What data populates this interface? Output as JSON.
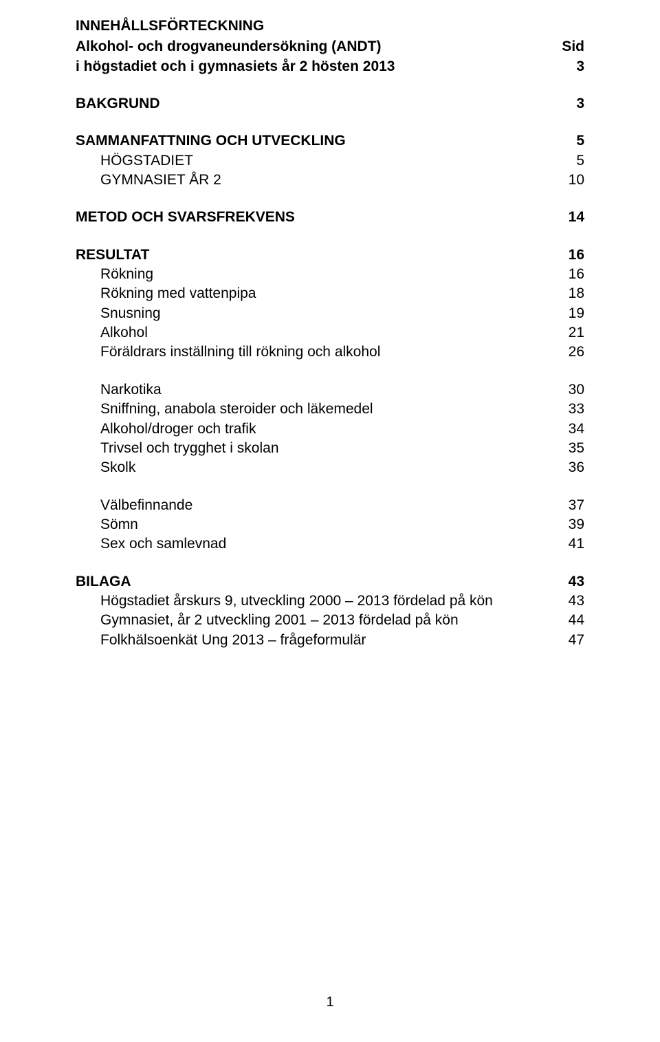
{
  "colors": {
    "text": "#000000",
    "background": "#ffffff"
  },
  "typography": {
    "font_family": "Arial",
    "title_fontsize_pt": 16,
    "body_fontsize_pt": 16,
    "line_height": 1.35
  },
  "title": "INNEHÅLLSFÖRTECKNING",
  "page_label": "Sid",
  "subtitle": {
    "line1": "Alkohol- och drogvaneundersökning (ANDT)",
    "line2": "i högstadiet och i gymnasiets år 2 hösten 2013",
    "page": "3"
  },
  "sections": [
    {
      "label": "BAKGRUND",
      "page": "3",
      "bold": true,
      "subs": []
    },
    {
      "label": "SAMMANFATTNING OCH UTVECKLING",
      "page": "5",
      "bold": true,
      "subs": [
        {
          "label": "HÖGSTADIET",
          "page": "5",
          "indent": true
        },
        {
          "label": "GYMNASIET ÅR 2",
          "page": "10",
          "indent": true
        }
      ]
    },
    {
      "label": "METOD OCH SVARSFREKVENS",
      "page": "14",
      "bold": true,
      "subs": []
    },
    {
      "label": "RESULTAT",
      "page": "16",
      "bold": true,
      "subs": [
        {
          "label": "Rökning",
          "page": "16",
          "indent": true
        },
        {
          "label": "Rökning med vattenpipa",
          "page": "18",
          "indent": true
        },
        {
          "label": "Snusning",
          "page": "19",
          "indent": true
        },
        {
          "label": "Alkohol",
          "page": "21",
          "indent": true
        },
        {
          "label": "Föräldrars inställning till rökning och alkohol",
          "page": "26",
          "indent": true
        }
      ]
    }
  ],
  "groups": [
    [
      {
        "label": "Narkotika",
        "page": "30"
      },
      {
        "label": "Sniffning, anabola steroider och läkemedel",
        "page": "33"
      },
      {
        "label": "Alkohol/droger och trafik",
        "page": "34"
      },
      {
        "label": "Trivsel och trygghet i skolan",
        "page": "35"
      },
      {
        "label": "Skolk",
        "page": "36"
      }
    ],
    [
      {
        "label": "Välbefinnande",
        "page": "37"
      },
      {
        "label": "Sömn",
        "page": "39"
      },
      {
        "label": "Sex och samlevnad",
        "page": "41"
      }
    ]
  ],
  "bilaga": {
    "label": "BILAGA",
    "page": "43",
    "subs": [
      {
        "label": "Högstadiet årskurs 9, utveckling 2000 – 2013 fördelad på kön",
        "page": "43"
      },
      {
        "label": "Gymnasiet, år 2 utveckling 2001 – 2013 fördelad på kön",
        "page": "44"
      },
      {
        "label": "Folkhälsoenkät Ung 2013 – frågeformulär",
        "page": "47"
      }
    ]
  },
  "page_number": "1"
}
